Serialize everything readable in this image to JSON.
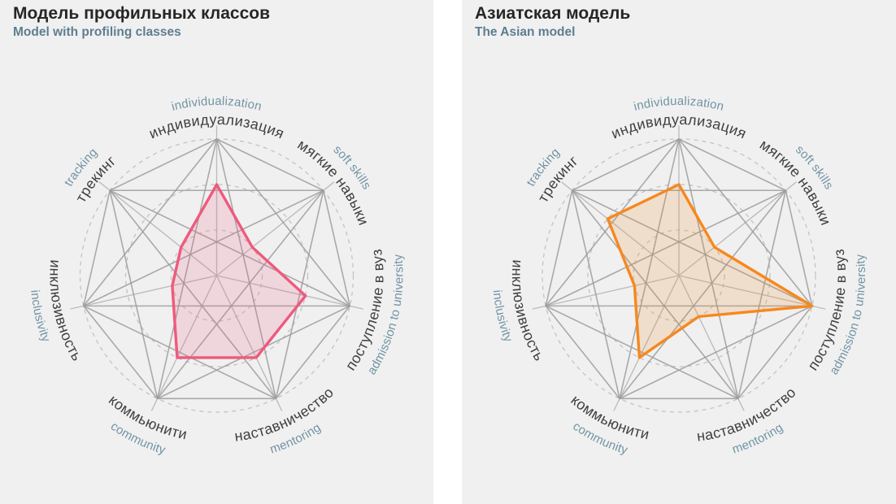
{
  "style": {
    "panel_background": "#f0f0f0",
    "gap_background": "#ffffff",
    "title_color": "#262626",
    "subtitle_color": "#5d7e90",
    "ru_label_color": "#404040",
    "en_label_color": "#7193a5",
    "ring_color": "#c3c3c3",
    "spoke_color": "#bcbcbc",
    "chord_color": "#9c9c9c"
  },
  "chart_data": [
    {
      "type": "radar",
      "title": "Модель профильных классов",
      "subtitle": "Model with profiling classes",
      "axes": [
        {
          "ru": "индивидуализация",
          "en": "individualization"
        },
        {
          "ru": "мягкие навыки",
          "en": "soft skills"
        },
        {
          "ru": "поступление в вуз",
          "en": "admission to university"
        },
        {
          "ru": "наставничество",
          "en": "mentoring"
        },
        {
          "ru": "коммьюнити",
          "en": "community"
        },
        {
          "ru": "инклюзивность",
          "en": "inclusivity"
        },
        {
          "ru": "трекинг",
          "en": "tracking"
        }
      ],
      "scale": {
        "min": 0,
        "max": 3,
        "rings": [
          1,
          2,
          3
        ],
        "grid": "dashed-circles + complete-graph-web"
      },
      "series": [
        {
          "name": "Модель профильных классов",
          "values": [
            2,
            1,
            2,
            2,
            2,
            1,
            1
          ],
          "stroke": "#ee5a7d",
          "fill": "#ee5a7d",
          "fill_opacity": 0.17
        }
      ],
      "legend": "none"
    },
    {
      "type": "radar",
      "title": "Азиатская модель",
      "subtitle": "The Asian model",
      "axes": [
        {
          "ru": "индивидуализация",
          "en": "individualization"
        },
        {
          "ru": "мягкие навыки",
          "en": "soft skills"
        },
        {
          "ru": "поступление в вуз",
          "en": "admission to university"
        },
        {
          "ru": "наставничество",
          "en": "mentoring"
        },
        {
          "ru": "коммьюнити",
          "en": "community"
        },
        {
          "ru": "инклюзивность",
          "en": "inclusivity"
        },
        {
          "ru": "трекинг",
          "en": "tracking"
        }
      ],
      "scale": {
        "min": 0,
        "max": 3,
        "rings": [
          1,
          2,
          3
        ],
        "grid": "dashed-circles + complete-graph-web"
      },
      "series": [
        {
          "name": "Азиатская модель",
          "values": [
            2,
            1,
            3,
            1,
            2,
            1,
            2
          ],
          "stroke": "#f6881f",
          "fill": "#f6881f",
          "fill_opacity": 0.17
        }
      ],
      "legend": "none"
    }
  ]
}
